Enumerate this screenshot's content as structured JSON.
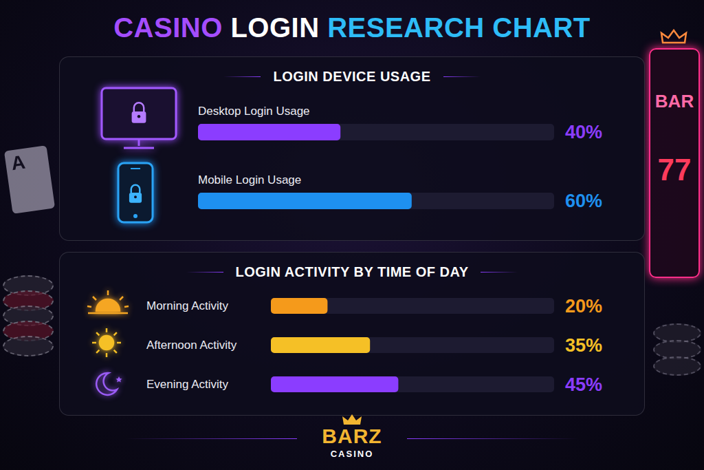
{
  "title": "CASINO LOGIN RESEARCH CHART",
  "chart_data": [
    {
      "type": "bar",
      "orientation": "horizontal",
      "title": "LOGIN DEVICE USAGE",
      "categories": [
        "Desktop Login Usage",
        "Mobile Login Usage"
      ],
      "values": [
        40,
        60
      ],
      "value_labels": [
        "40%",
        "60%"
      ],
      "colors": [
        "#8b3dff",
        "#1e90f0"
      ],
      "xlim": [
        0,
        100
      ],
      "data_labels": true,
      "tick_labels": false
    },
    {
      "type": "bar",
      "orientation": "horizontal",
      "title": "LOGIN ACTIVITY BY TIME OF DAY",
      "categories": [
        "Morning Activity",
        "Afternoon Activity",
        "Evening Activity"
      ],
      "values": [
        20,
        35,
        45
      ],
      "value_labels": [
        "20%",
        "35%",
        "45%"
      ],
      "colors": [
        "#f59a1b",
        "#f5c026",
        "#8b3dff"
      ],
      "xlim": [
        0,
        100
      ],
      "data_labels": true,
      "tick_labels": false
    }
  ],
  "brand": {
    "name": "BARZ",
    "tagline": "CASINO"
  },
  "decor": {
    "card": "A",
    "slot_symbols": [
      "BAR",
      "7",
      "7"
    ]
  }
}
